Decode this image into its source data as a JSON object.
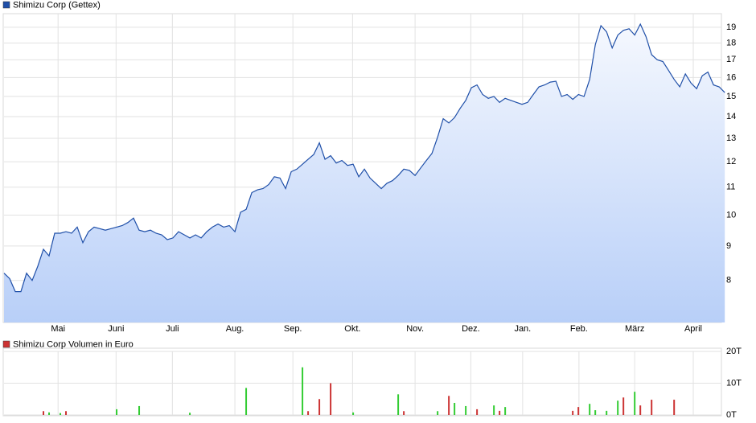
{
  "chart_data": [
    {
      "type": "line",
      "title": "Shimizu Corp (Gettex)",
      "color": "#1f4fa8",
      "log_scale": true,
      "grid": true,
      "values": [
        8.2,
        8.05,
        7.7,
        7.7,
        8.2,
        8.0,
        8.4,
        8.9,
        8.7,
        9.4,
        9.4,
        9.45,
        9.4,
        9.6,
        9.1,
        9.45,
        9.6,
        9.55,
        9.5,
        9.55,
        9.6,
        9.65,
        9.75,
        9.9,
        9.5,
        9.45,
        9.5,
        9.4,
        9.35,
        9.2,
        9.25,
        9.45,
        9.35,
        9.25,
        9.35,
        9.25,
        9.45,
        9.6,
        9.7,
        9.6,
        9.65,
        9.45,
        10.1,
        10.2,
        10.8,
        10.9,
        10.95,
        11.1,
        11.4,
        11.35,
        10.95,
        11.6,
        11.7,
        11.9,
        12.1,
        12.3,
        12.8,
        12.1,
        12.25,
        11.95,
        12.05,
        11.85,
        11.9,
        11.4,
        11.7,
        11.35,
        11.15,
        10.95,
        11.15,
        11.25,
        11.45,
        11.7,
        11.65,
        11.45,
        11.75,
        12.05,
        12.35,
        13.05,
        13.9,
        13.7,
        13.95,
        14.4,
        14.8,
        15.45,
        15.6,
        15.1,
        14.9,
        15.0,
        14.7,
        14.9,
        14.8,
        14.7,
        14.6,
        14.7,
        15.1,
        15.5,
        15.6,
        15.75,
        15.8,
        15.0,
        15.1,
        14.85,
        15.1,
        15.0,
        15.9,
        17.9,
        19.1,
        18.7,
        17.7,
        18.5,
        18.8,
        18.9,
        18.5,
        19.2,
        18.4,
        17.3,
        17.0,
        16.9,
        16.4,
        15.9,
        15.5,
        16.2,
        15.7,
        15.4,
        16.1,
        16.3,
        15.6,
        15.5,
        15.2
      ],
      "xlim": [
        0,
        127.4
      ],
      "xticks": [
        {
          "value": 9.6,
          "label": "Mai"
        },
        {
          "value": 19.9,
          "label": "Juni"
        },
        {
          "value": 29.9,
          "label": "Juli"
        },
        {
          "value": 41,
          "label": "Aug."
        },
        {
          "value": 51.3,
          "label": "Sep."
        },
        {
          "value": 61.9,
          "label": "Okt."
        },
        {
          "value": 73,
          "label": "Nov."
        },
        {
          "value": 82.9,
          "label": "Dez."
        },
        {
          "value": 92.1,
          "label": "Jan."
        },
        {
          "value": 102.1,
          "label": "Feb."
        },
        {
          "value": 112,
          "label": "März"
        },
        {
          "value": 122.4,
          "label": "April"
        }
      ],
      "ylim": [
        6.93,
        19.9
      ],
      "yticks": [
        8,
        9,
        10,
        11,
        12,
        13,
        14,
        15,
        16,
        17,
        18,
        19
      ]
    },
    {
      "type": "bar",
      "title": "Shimizu Corp Volumen in Euro",
      "color": "#cc3333",
      "grid": true,
      "x": [
        7,
        8,
        10,
        11,
        20,
        24,
        33,
        43,
        53,
        54,
        56,
        58,
        62,
        70,
        71,
        77,
        79,
        80,
        82,
        84,
        87,
        88,
        89,
        101,
        102,
        104,
        105,
        107,
        109,
        110,
        112,
        113,
        115,
        119
      ],
      "values": [
        1.2,
        0.8,
        0.6,
        1.2,
        1.8,
        2.8,
        0.7,
        8.5,
        15,
        1.2,
        5,
        10,
        0.8,
        6.5,
        1.2,
        1.2,
        6,
        3.8,
        2.8,
        1.8,
        3,
        1.3,
        2.5,
        1.3,
        2.5,
        3.5,
        1.5,
        1.3,
        4.5,
        5.5,
        7.3,
        3,
        4.8,
        4.8
      ],
      "colors": [
        "#cc3333",
        "#33cc33",
        "#33cc33",
        "#cc3333",
        "#33cc33",
        "#33cc33",
        "#33cc33",
        "#33cc33",
        "#33cc33",
        "#cc3333",
        "#cc3333",
        "#cc3333",
        "#33cc33",
        "#33cc33",
        "#cc3333",
        "#33cc33",
        "#cc3333",
        "#33cc33",
        "#33cc33",
        "#cc3333",
        "#33cc33",
        "#cc3333",
        "#33cc33",
        "#cc3333",
        "#cc3333",
        "#33cc33",
        "#33cc33",
        "#33cc33",
        "#33cc33",
        "#cc3333",
        "#33cc33",
        "#cc3333",
        "#cc3333",
        "#cc3333"
      ],
      "xlim": [
        0,
        127.4
      ],
      "ylim": [
        0,
        20
      ],
      "yticks": [
        {
          "value": 0,
          "label": "0T"
        },
        {
          "value": 10,
          "label": "10T"
        },
        {
          "value": 20,
          "label": "20T"
        }
      ]
    }
  ]
}
